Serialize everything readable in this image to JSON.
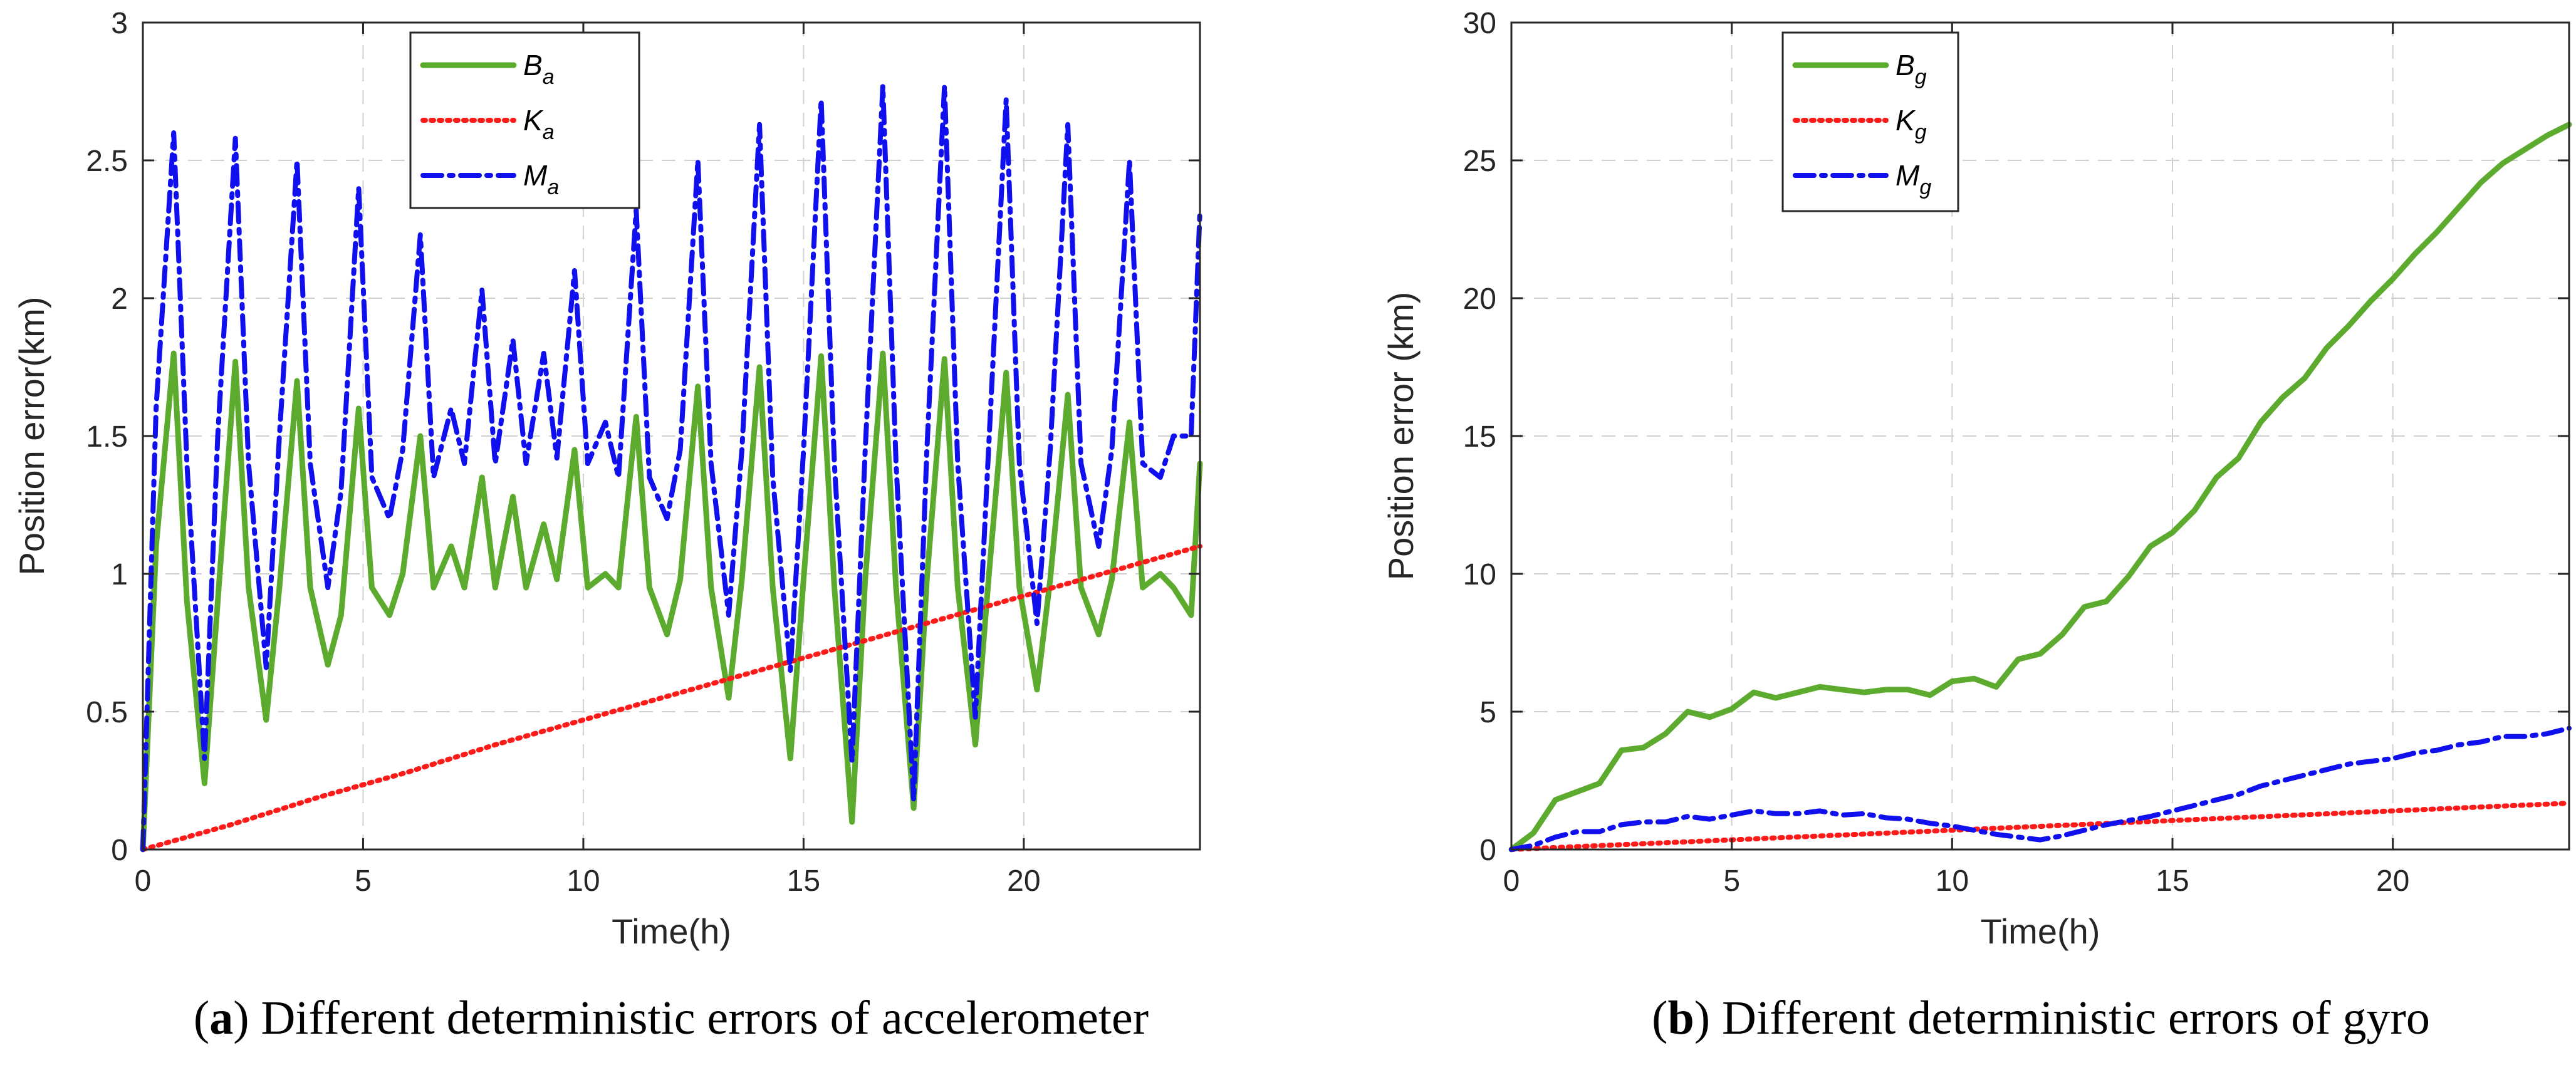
{
  "colors": {
    "B": "#5dab2e",
    "K": "#ff1a1a",
    "M": "#1010ee",
    "grid": "#d0d0d0",
    "axis": "#262626"
  },
  "chart_data": [
    {
      "type": "line",
      "caption_letter": "a",
      "caption_text": "Different deterministic errors of accelerometer",
      "xlabel": "Time(h)",
      "ylabel": "Position error(km)",
      "xlim": [
        0,
        24
      ],
      "ylim": [
        0,
        3
      ],
      "xticks": [
        "0",
        "5",
        "10",
        "15",
        "20"
      ],
      "yticks": [
        "0",
        "0.5",
        "1",
        "1.5",
        "2",
        "2.5",
        "3"
      ],
      "legend_position": "top-center",
      "series": [
        {
          "name": "B",
          "sub": "a",
          "style": "solid",
          "x": [
            0,
            0.3,
            0.7,
            1.0,
            1.4,
            1.7,
            2.1,
            2.4,
            2.8,
            3.1,
            3.5,
            3.8,
            4.2,
            4.5,
            4.9,
            5.2,
            5.6,
            5.9,
            6.3,
            6.6,
            7.0,
            7.3,
            7.7,
            8.0,
            8.4,
            8.7,
            9.1,
            9.4,
            9.8,
            10.1,
            10.5,
            10.8,
            11.2,
            11.5,
            11.9,
            12.2,
            12.6,
            12.9,
            13.3,
            13.6,
            14.0,
            14.3,
            14.7,
            15.0,
            15.4,
            15.7,
            16.1,
            16.4,
            16.8,
            17.1,
            17.5,
            17.8,
            18.2,
            18.5,
            18.9,
            19.2,
            19.6,
            19.9,
            20.3,
            20.6,
            21.0,
            21.3,
            21.7,
            22.0,
            22.4,
            22.7,
            23.1,
            23.4,
            23.8,
            24
          ],
          "y": [
            0,
            1.1,
            1.8,
            0.9,
            0.24,
            0.9,
            1.77,
            0.95,
            0.47,
            0.95,
            1.7,
            0.95,
            0.67,
            0.85,
            1.6,
            0.95,
            0.85,
            1.0,
            1.5,
            0.95,
            1.1,
            0.95,
            1.35,
            0.95,
            1.28,
            0.95,
            1.18,
            0.98,
            1.45,
            0.95,
            1.0,
            0.95,
            1.57,
            0.95,
            0.78,
            0.98,
            1.68,
            0.95,
            0.55,
            0.98,
            1.75,
            0.95,
            0.33,
            0.98,
            1.79,
            0.95,
            0.1,
            0.98,
            1.8,
            0.95,
            0.15,
            0.98,
            1.78,
            0.95,
            0.38,
            0.98,
            1.73,
            0.95,
            0.58,
            0.98,
            1.65,
            0.95,
            0.78,
            0.98,
            1.55,
            0.95,
            1.0,
            0.95,
            0.85,
            1.4
          ]
        },
        {
          "name": "K",
          "sub": "a",
          "style": "dotted",
          "x": [
            0,
            2,
            4,
            6,
            8,
            10,
            12,
            14,
            16,
            18,
            20,
            22,
            24
          ],
          "y": [
            0,
            0.09,
            0.19,
            0.28,
            0.38,
            0.47,
            0.56,
            0.65,
            0.74,
            0.83,
            0.92,
            1.01,
            1.1
          ]
        },
        {
          "name": "M",
          "sub": "a",
          "style": "dashdot",
          "x": [
            0,
            0.3,
            0.7,
            1.0,
            1.4,
            1.7,
            2.1,
            2.4,
            2.8,
            3.1,
            3.5,
            3.8,
            4.2,
            4.5,
            4.9,
            5.2,
            5.6,
            5.9,
            6.3,
            6.6,
            7.0,
            7.3,
            7.7,
            8.0,
            8.4,
            8.7,
            9.1,
            9.4,
            9.8,
            10.1,
            10.5,
            10.8,
            11.2,
            11.5,
            11.9,
            12.2,
            12.6,
            12.9,
            13.3,
            13.6,
            14.0,
            14.3,
            14.7,
            15.0,
            15.4,
            15.7,
            16.1,
            16.4,
            16.8,
            17.1,
            17.5,
            17.8,
            18.2,
            18.5,
            18.9,
            19.2,
            19.6,
            19.9,
            20.3,
            20.6,
            21.0,
            21.3,
            21.7,
            22.0,
            22.4,
            22.7,
            23.1,
            23.4,
            23.8,
            24
          ],
          "y": [
            0,
            1.6,
            2.6,
            1.4,
            0.33,
            1.5,
            2.58,
            1.4,
            0.66,
            1.5,
            2.5,
            1.4,
            0.95,
            1.3,
            2.4,
            1.35,
            1.2,
            1.45,
            2.23,
            1.35,
            1.6,
            1.4,
            2.03,
            1.4,
            1.85,
            1.4,
            1.8,
            1.42,
            2.1,
            1.4,
            1.55,
            1.35,
            2.32,
            1.35,
            1.2,
            1.45,
            2.5,
            1.4,
            0.85,
            1.45,
            2.63,
            1.35,
            0.65,
            1.45,
            2.72,
            1.4,
            0.32,
            1.45,
            2.77,
            1.4,
            0.18,
            1.45,
            2.77,
            1.4,
            0.48,
            1.45,
            2.72,
            1.4,
            0.82,
            1.45,
            2.63,
            1.4,
            1.1,
            1.45,
            2.5,
            1.4,
            1.35,
            1.5,
            1.5,
            2.32
          ]
        }
      ]
    },
    {
      "type": "line",
      "caption_letter": "b",
      "caption_text": "Different deterministic errors of gyro",
      "xlabel": "Time(h)",
      "ylabel": "Position error (km)",
      "xlim": [
        0,
        24
      ],
      "ylim": [
        0,
        30
      ],
      "xticks": [
        "0",
        "5",
        "10",
        "15",
        "20"
      ],
      "yticks": [
        "0",
        "5",
        "10",
        "15",
        "20",
        "25",
        "30"
      ],
      "legend_position": "top-left",
      "series": [
        {
          "name": "B",
          "sub": "g",
          "style": "solid",
          "x": [
            0,
            0.5,
            1,
            1.5,
            2,
            2.5,
            3,
            3.5,
            4,
            4.5,
            5,
            5.5,
            6,
            6.5,
            7,
            7.5,
            8,
            8.5,
            9,
            9.5,
            10,
            10.5,
            11,
            11.5,
            12,
            12.5,
            13,
            13.5,
            14,
            14.5,
            15,
            15.5,
            16,
            16.5,
            17,
            17.5,
            18,
            18.5,
            19,
            19.5,
            20,
            20.5,
            21,
            21.5,
            22,
            22.5,
            23,
            23.5,
            24
          ],
          "y": [
            0,
            0.6,
            1.8,
            2.1,
            2.4,
            3.6,
            3.7,
            4.2,
            5.0,
            4.8,
            5.1,
            5.7,
            5.5,
            5.7,
            5.9,
            5.8,
            5.7,
            5.8,
            5.8,
            5.6,
            6.1,
            6.2,
            5.9,
            6.9,
            7.1,
            7.8,
            8.8,
            9.0,
            9.9,
            11.0,
            11.5,
            12.3,
            13.5,
            14.2,
            15.5,
            16.4,
            17.1,
            18.2,
            19.0,
            19.9,
            20.7,
            21.6,
            22.4,
            23.3,
            24.2,
            24.9,
            25.4,
            25.9,
            26.3
          ]
        },
        {
          "name": "K",
          "sub": "g",
          "style": "dotted",
          "x": [
            0,
            2,
            4,
            6,
            8,
            10,
            12,
            14,
            16,
            18,
            20,
            22,
            24
          ],
          "y": [
            0,
            0.14,
            0.28,
            0.42,
            0.56,
            0.7,
            0.84,
            0.98,
            1.12,
            1.26,
            1.4,
            1.54,
            1.68
          ]
        },
        {
          "name": "M",
          "sub": "g",
          "style": "dashdot",
          "x": [
            0,
            0.5,
            1,
            1.5,
            2,
            2.5,
            3,
            3.5,
            4,
            4.5,
            5,
            5.5,
            6,
            6.5,
            7,
            7.5,
            8,
            8.5,
            9,
            9.5,
            10,
            10.5,
            11,
            11.5,
            12,
            12.5,
            13,
            13.5,
            14,
            14.5,
            15,
            15.5,
            16,
            16.5,
            17,
            17.5,
            18,
            18.5,
            19,
            19.5,
            20,
            20.5,
            21,
            21.5,
            22,
            22.5,
            23,
            23.5,
            24
          ],
          "y": [
            0,
            0.15,
            0.45,
            0.65,
            0.65,
            0.9,
            1.0,
            1.0,
            1.2,
            1.1,
            1.25,
            1.4,
            1.3,
            1.3,
            1.4,
            1.25,
            1.3,
            1.15,
            1.1,
            0.95,
            0.85,
            0.7,
            0.55,
            0.45,
            0.35,
            0.5,
            0.7,
            0.9,
            1.05,
            1.2,
            1.4,
            1.6,
            1.8,
            2.0,
            2.3,
            2.5,
            2.7,
            2.9,
            3.1,
            3.2,
            3.3,
            3.5,
            3.6,
            3.8,
            3.9,
            4.1,
            4.1,
            4.2,
            4.4
          ]
        }
      ]
    }
  ]
}
